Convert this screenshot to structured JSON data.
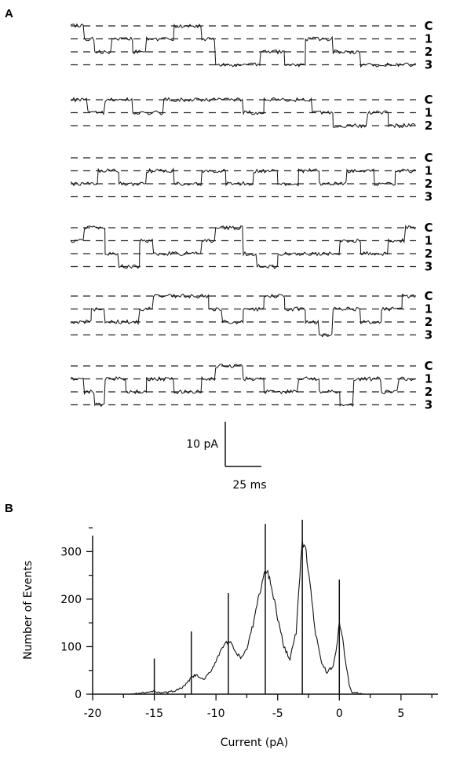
{
  "chart_data": [
    {
      "panel": "A",
      "type": "line",
      "scale_bar": {
        "current_label": "10 pA",
        "time_label": "25 ms",
        "current_pA": 10,
        "time_ms": 25
      },
      "level_labels": [
        "C",
        "1",
        "2",
        "3"
      ],
      "level_currents_pA": {
        "C": 0,
        "1": -3,
        "2": -6,
        "3": -9
      },
      "traces": [
        {
          "levels": [
            "C",
            "1",
            "2",
            "3"
          ],
          "segments": [
            [
              0,
              "C"
            ],
            [
              0.04,
              "1"
            ],
            [
              0.07,
              "2"
            ],
            [
              0.12,
              "1"
            ],
            [
              0.18,
              "2"
            ],
            [
              0.22,
              "1"
            ],
            [
              0.3,
              "C"
            ],
            [
              0.38,
              "1"
            ],
            [
              0.42,
              "3"
            ],
            [
              0.55,
              "2"
            ],
            [
              0.62,
              "3"
            ],
            [
              0.68,
              "1"
            ],
            [
              0.76,
              "2"
            ],
            [
              0.84,
              "3"
            ]
          ]
        },
        {
          "levels": [
            "C",
            "1",
            "2"
          ],
          "segments": [
            [
              0,
              "C"
            ],
            [
              0.05,
              "1"
            ],
            [
              0.1,
              "C"
            ],
            [
              0.18,
              "1"
            ],
            [
              0.27,
              "C"
            ],
            [
              0.5,
              "1"
            ],
            [
              0.56,
              "C"
            ],
            [
              0.7,
              "1"
            ],
            [
              0.76,
              "2"
            ],
            [
              0.86,
              "1"
            ],
            [
              0.92,
              "2"
            ]
          ]
        },
        {
          "levels": [
            "C",
            "1",
            "2",
            "3"
          ],
          "segments": [
            [
              0,
              "2"
            ],
            [
              0.08,
              "1"
            ],
            [
              0.14,
              "2"
            ],
            [
              0.22,
              "1"
            ],
            [
              0.3,
              "2"
            ],
            [
              0.38,
              "1"
            ],
            [
              0.45,
              "2"
            ],
            [
              0.53,
              "1"
            ],
            [
              0.6,
              "2"
            ],
            [
              0.66,
              "1"
            ],
            [
              0.72,
              "2"
            ],
            [
              0.8,
              "1"
            ],
            [
              0.88,
              "2"
            ],
            [
              0.94,
              "1"
            ]
          ]
        },
        {
          "levels": [
            "C",
            "1",
            "2",
            "3"
          ],
          "segments": [
            [
              0,
              "1"
            ],
            [
              0.04,
              "C"
            ],
            [
              0.1,
              "2"
            ],
            [
              0.14,
              "3"
            ],
            [
              0.2,
              "1"
            ],
            [
              0.24,
              "2"
            ],
            [
              0.38,
              "1"
            ],
            [
              0.42,
              "C"
            ],
            [
              0.5,
              "2"
            ],
            [
              0.54,
              "3"
            ],
            [
              0.6,
              "2"
            ],
            [
              0.78,
              "1"
            ],
            [
              0.84,
              "2"
            ],
            [
              0.92,
              "1"
            ],
            [
              0.97,
              "C"
            ]
          ]
        },
        {
          "levels": [
            "C",
            "1",
            "2",
            "3"
          ],
          "segments": [
            [
              0,
              "2"
            ],
            [
              0.06,
              "1"
            ],
            [
              0.1,
              "2"
            ],
            [
              0.2,
              "1"
            ],
            [
              0.24,
              "C"
            ],
            [
              0.4,
              "1"
            ],
            [
              0.44,
              "2"
            ],
            [
              0.5,
              "1"
            ],
            [
              0.56,
              "C"
            ],
            [
              0.62,
              "1"
            ],
            [
              0.68,
              "2"
            ],
            [
              0.72,
              "3"
            ],
            [
              0.76,
              "1"
            ],
            [
              0.84,
              "2"
            ],
            [
              0.9,
              "1"
            ],
            [
              0.96,
              "C"
            ]
          ]
        },
        {
          "levels": [
            "C",
            "1",
            "2",
            "3"
          ],
          "segments": [
            [
              0,
              "1"
            ],
            [
              0.04,
              "2"
            ],
            [
              0.07,
              "3"
            ],
            [
              0.1,
              "1"
            ],
            [
              0.16,
              "2"
            ],
            [
              0.22,
              "1"
            ],
            [
              0.3,
              "2"
            ],
            [
              0.38,
              "1"
            ],
            [
              0.42,
              "C"
            ],
            [
              0.5,
              "1"
            ],
            [
              0.56,
              "2"
            ],
            [
              0.66,
              "1"
            ],
            [
              0.72,
              "2"
            ],
            [
              0.78,
              "3"
            ],
            [
              0.82,
              "1"
            ],
            [
              0.9,
              "2"
            ],
            [
              0.95,
              "1"
            ]
          ]
        }
      ]
    },
    {
      "panel": "B",
      "type": "line",
      "xlabel": "Current (pA)",
      "ylabel": "Number of Events",
      "xlim": [
        -20,
        8
      ],
      "ylim": [
        0,
        370
      ],
      "xticks": [
        -20,
        -15,
        -10,
        -5,
        0,
        5
      ],
      "yticks": [
        0,
        100,
        200,
        300
      ],
      "histogram": {
        "x": [
          -20,
          -17,
          -16,
          -15.5,
          -15,
          -14.5,
          -14,
          -13,
          -12.5,
          -12,
          -11.6,
          -11,
          -10.5,
          -10,
          -9.5,
          -9,
          -8.8,
          -8.5,
          -8,
          -7.5,
          -7,
          -6.5,
          -6,
          -5.8,
          -5.5,
          -5,
          -4.5,
          -4,
          -3.5,
          -3.2,
          -3,
          -2.7,
          -2.3,
          -2,
          -1.5,
          -1,
          -0.5,
          -0.2,
          0,
          0.2,
          0.5,
          0.8,
          1,
          2,
          8
        ],
        "y": [
          0,
          0,
          2,
          4,
          6,
          4,
          3,
          10,
          18,
          35,
          40,
          30,
          45,
          70,
          100,
          110,
          106,
          92,
          75,
          95,
          145,
          210,
          260,
          255,
          230,
          160,
          100,
          75,
          130,
          250,
          320,
          300,
          215,
          140,
          70,
          45,
          60,
          100,
          150,
          130,
          70,
          20,
          4,
          0,
          0
        ]
      },
      "peak_markers": [
        {
          "x": -15,
          "y": 75
        },
        {
          "x": -12,
          "y": 132
        },
        {
          "x": -9,
          "y": 213
        },
        {
          "x": -6,
          "y": 358
        },
        {
          "x": -3,
          "y": 367
        },
        {
          "x": 0,
          "y": 241
        }
      ]
    }
  ],
  "labels": {
    "panel_a": "A",
    "panel_b": "B"
  }
}
